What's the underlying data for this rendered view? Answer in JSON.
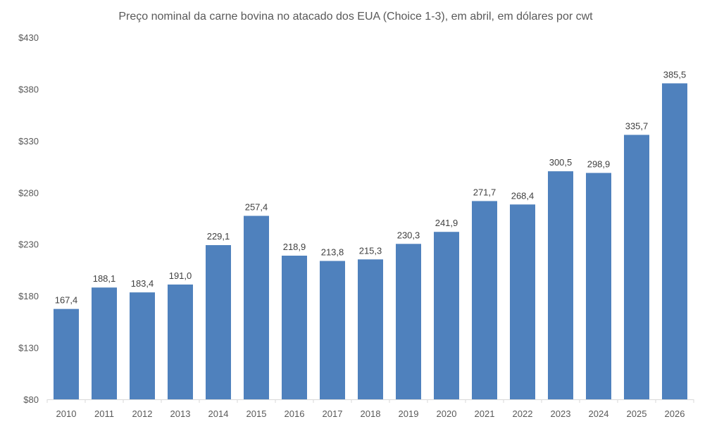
{
  "chart_data": {
    "type": "bar",
    "title": "Preço nominal da carne bovina no atacado dos EUA (Choice 1-3), em abril, em dólares por cwt",
    "xlabel": "",
    "ylabel": "",
    "categories": [
      "2010",
      "2011",
      "2012",
      "2013",
      "2014",
      "2015",
      "2016",
      "2017",
      "2018",
      "2019",
      "2020",
      "2021",
      "2022",
      "2023",
      "2024",
      "2025",
      "2026"
    ],
    "values": [
      167.4,
      188.1,
      183.4,
      191.0,
      229.1,
      257.4,
      218.9,
      213.8,
      215.3,
      230.3,
      241.9,
      271.7,
      268.4,
      300.5,
      298.9,
      335.7,
      385.5
    ],
    "data_labels": [
      "167,4",
      "188,1",
      "183,4",
      "191,0",
      "229,1",
      "257,4",
      "218,9",
      "213,8",
      "215,3",
      "230,3",
      "241,9",
      "271,7",
      "268,4",
      "300,5",
      "298,9",
      "335,7",
      "385,5"
    ],
    "ylim": [
      80,
      430
    ],
    "yticks": [
      80,
      130,
      180,
      230,
      280,
      330,
      380,
      430
    ],
    "ytick_labels": [
      "$80",
      "$130",
      "$180",
      "$230",
      "$280",
      "$330",
      "$380",
      "$430"
    ],
    "grid": false,
    "legend": "none",
    "bar_color": "#4f81bd"
  }
}
